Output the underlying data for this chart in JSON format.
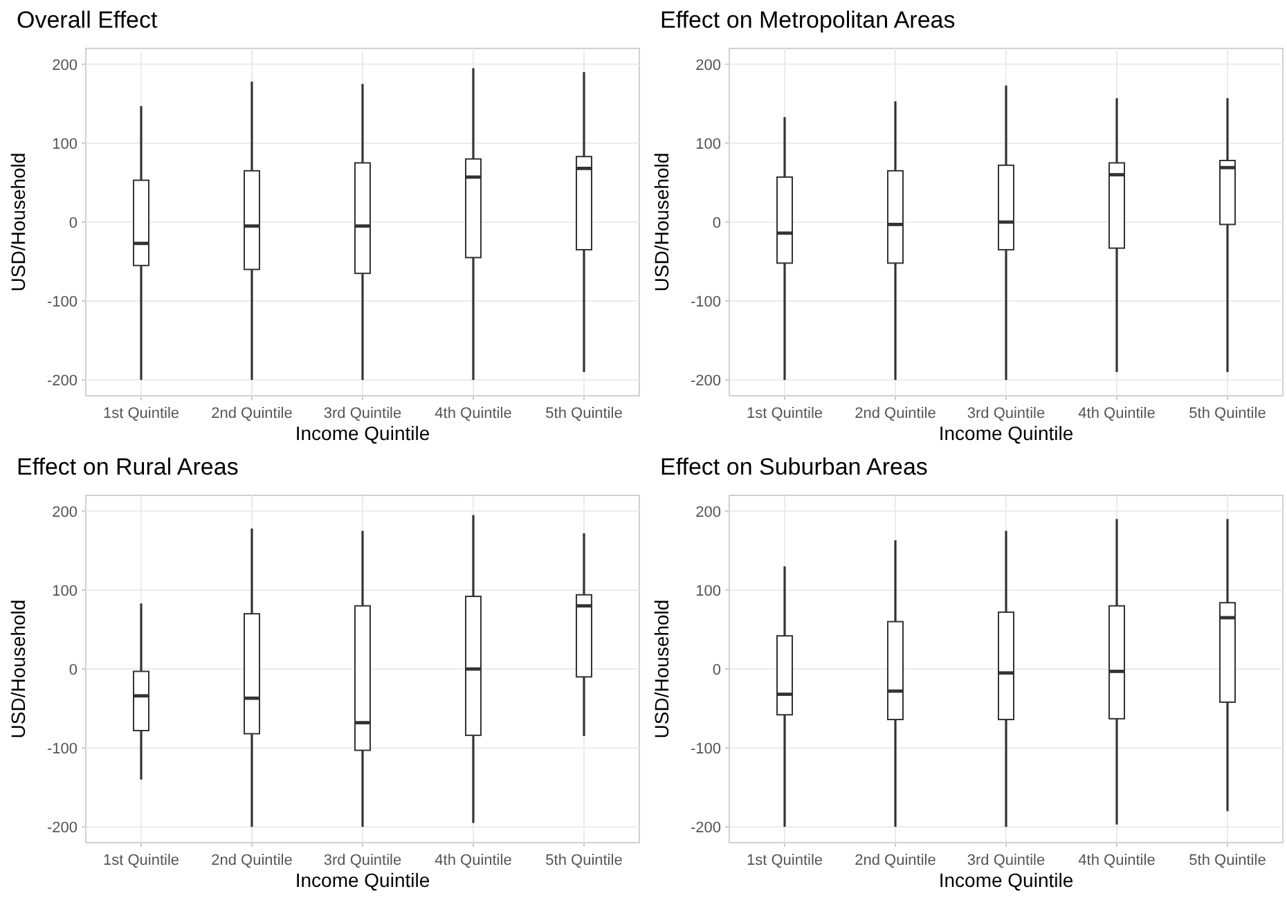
{
  "chart_data": [
    {
      "type": "box",
      "title": "Overall Effect",
      "xlabel": "Income Quintile",
      "ylabel": "USD/Household",
      "categories": [
        "1st Quintile",
        "2nd Quintile",
        "3rd Quintile",
        "4th Quintile",
        "5th Quintile"
      ],
      "ylim": [
        -220,
        220
      ],
      "yticks": [
        -200,
        -100,
        0,
        100,
        200
      ],
      "grid": true,
      "boxes": [
        {
          "low": -200,
          "q1": -55,
          "median": -27,
          "q3": 53,
          "high": 147
        },
        {
          "low": -200,
          "q1": -60,
          "median": -5,
          "q3": 65,
          "high": 178
        },
        {
          "low": -200,
          "q1": -65,
          "median": -5,
          "q3": 75,
          "high": 175
        },
        {
          "low": -200,
          "q1": -45,
          "median": 57,
          "q3": 80,
          "high": 195
        },
        {
          "low": -190,
          "q1": -35,
          "median": 68,
          "q3": 83,
          "high": 190
        }
      ]
    },
    {
      "type": "box",
      "title": "Effect on Metropolitan Areas",
      "xlabel": "Income Quintile",
      "ylabel": "USD/Household",
      "categories": [
        "1st Quintile",
        "2nd Quintile",
        "3rd Quintile",
        "4th Quintile",
        "5th Quintile"
      ],
      "ylim": [
        -220,
        220
      ],
      "yticks": [
        -200,
        -100,
        0,
        100,
        200
      ],
      "grid": true,
      "boxes": [
        {
          "low": -200,
          "q1": -52,
          "median": -14,
          "q3": 57,
          "high": 133
        },
        {
          "low": -200,
          "q1": -52,
          "median": -3,
          "q3": 65,
          "high": 153
        },
        {
          "low": -200,
          "q1": -35,
          "median": 0,
          "q3": 72,
          "high": 173
        },
        {
          "low": -190,
          "q1": -33,
          "median": 60,
          "q3": 75,
          "high": 157
        },
        {
          "low": -190,
          "q1": -3,
          "median": 69,
          "q3": 78,
          "high": 157
        }
      ]
    },
    {
      "type": "box",
      "title": "Effect on Rural Areas",
      "xlabel": "Income Quintile",
      "ylabel": "USD/Household",
      "categories": [
        "1st Quintile",
        "2nd Quintile",
        "3rd Quintile",
        "4th Quintile",
        "5th Quintile"
      ],
      "ylim": [
        -220,
        220
      ],
      "yticks": [
        -200,
        -100,
        0,
        100,
        200
      ],
      "grid": true,
      "boxes": [
        {
          "low": -140,
          "q1": -78,
          "median": -34,
          "q3": -3,
          "high": 83
        },
        {
          "low": -200,
          "q1": -82,
          "median": -37,
          "q3": 70,
          "high": 178
        },
        {
          "low": -200,
          "q1": -103,
          "median": -68,
          "q3": 80,
          "high": 175
        },
        {
          "low": -195,
          "q1": -84,
          "median": 0,
          "q3": 92,
          "high": 195
        },
        {
          "low": -85,
          "q1": -10,
          "median": 80,
          "q3": 94,
          "high": 172
        }
      ]
    },
    {
      "type": "box",
      "title": "Effect on Suburban Areas",
      "xlabel": "Income Quintile",
      "ylabel": "USD/Household",
      "categories": [
        "1st Quintile",
        "2nd Quintile",
        "3rd Quintile",
        "4th Quintile",
        "5th Quintile"
      ],
      "ylim": [
        -220,
        220
      ],
      "yticks": [
        -200,
        -100,
        0,
        100,
        200
      ],
      "grid": true,
      "boxes": [
        {
          "low": -200,
          "q1": -58,
          "median": -32,
          "q3": 42,
          "high": 130
        },
        {
          "low": -200,
          "q1": -64,
          "median": -28,
          "q3": 60,
          "high": 163
        },
        {
          "low": -200,
          "q1": -64,
          "median": -5,
          "q3": 72,
          "high": 175
        },
        {
          "low": -197,
          "q1": -63,
          "median": -3,
          "q3": 80,
          "high": 190
        },
        {
          "low": -180,
          "q1": -42,
          "median": 65,
          "q3": 84,
          "high": 190
        }
      ]
    }
  ]
}
